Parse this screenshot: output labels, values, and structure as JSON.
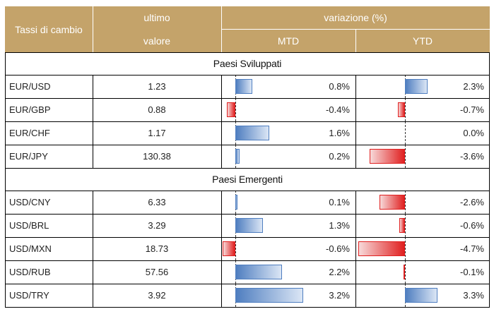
{
  "header": {
    "pair_col": "Tassi di cambio",
    "value_col_top": "ultimo",
    "value_col_bottom": "valore",
    "change_group": "variazione (%)",
    "mtd_col": "MTD",
    "ytd_col": "YTD"
  },
  "sections": [
    {
      "title": "Paesi Sviluppati",
      "rows": [
        {
          "pair": "EUR/USD",
          "value": "1.23",
          "mtd": "0.8%",
          "ytd": "2.3%",
          "mtd_pct": 0.8,
          "ytd_pct": 2.3
        },
        {
          "pair": "EUR/GBP",
          "value": "0.88",
          "mtd": "-0.4%",
          "ytd": "-0.7%",
          "mtd_pct": -0.4,
          "ytd_pct": -0.7
        },
        {
          "pair": "EUR/CHF",
          "value": "1.17",
          "mtd": "1.6%",
          "ytd": "0.0%",
          "mtd_pct": 1.6,
          "ytd_pct": 0.0
        },
        {
          "pair": "EUR/JPY",
          "value": "130.38",
          "mtd": "0.2%",
          "ytd": "-3.6%",
          "mtd_pct": 0.2,
          "ytd_pct": -3.6
        }
      ]
    },
    {
      "title": "Paesi Emergenti",
      "rows": [
        {
          "pair": "USD/CNY",
          "value": "6.33",
          "mtd": "0.1%",
          "ytd": "-2.6%",
          "mtd_pct": 0.1,
          "ytd_pct": -2.6
        },
        {
          "pair": "USD/BRL",
          "value": "3.29",
          "mtd": "1.3%",
          "ytd": "-0.6%",
          "mtd_pct": 1.3,
          "ytd_pct": -0.6
        },
        {
          "pair": "USD/MXN",
          "value": "18.73",
          "mtd": "-0.6%",
          "ytd": "-4.7%",
          "mtd_pct": -0.6,
          "ytd_pct": -4.7
        },
        {
          "pair": "USD/RUB",
          "value": "57.56",
          "mtd": "2.2%",
          "ytd": "-0.1%",
          "mtd_pct": 2.2,
          "ytd_pct": -0.1
        },
        {
          "pair": "USD/TRY",
          "value": "3.92",
          "mtd": "3.2%",
          "ytd": "3.3%",
          "mtd_pct": 3.2,
          "ytd_pct": 3.3
        }
      ]
    }
  ],
  "colors": {
    "header_bg": "#c4a36a",
    "positive_bar": "#4f7ec0",
    "negative_bar": "#e02020"
  }
}
